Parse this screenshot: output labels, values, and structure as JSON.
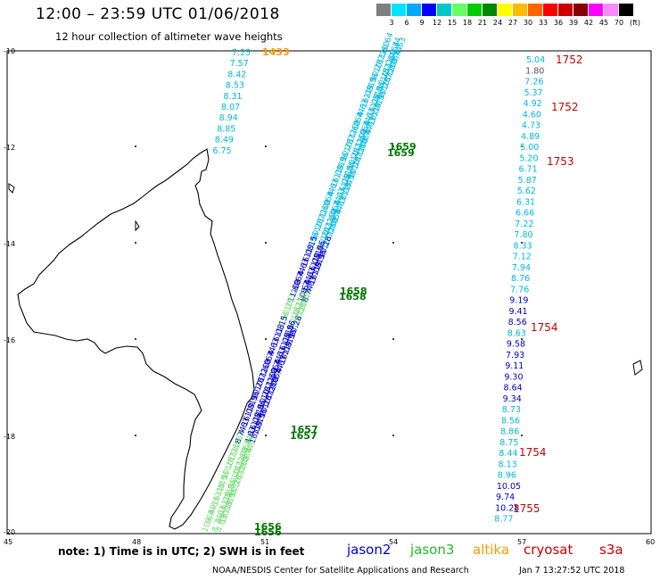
{
  "header": {
    "title": "12:00 – 23:59 UTC 01/06/2018",
    "subtitle": "12 hour collection of altimeter wave heights"
  },
  "legend": {
    "unit": "(ft)",
    "colors": [
      "#7f7f7f",
      "#00e5ff",
      "#00a8ff",
      "#0000ff",
      "#00c8c8",
      "#66ff66",
      "#00cc00",
      "#008800",
      "#ffff00",
      "#ffbb00",
      "#ff6600",
      "#ff0000",
      "#cc0000",
      "#880000",
      "#ff00ff",
      "#ff88ff",
      "#000000"
    ],
    "ticks": [
      "3",
      "6",
      "9",
      "12",
      "15",
      "18",
      "21",
      "24",
      "27",
      "30",
      "33",
      "36",
      "39",
      "42",
      "45",
      "70"
    ]
  },
  "axes": {
    "lat_labels": [
      "-10",
      "-12",
      "-14",
      "-16",
      "-18",
      "-20"
    ],
    "lon_labels": [
      "45",
      "48",
      "51",
      "54",
      "57",
      "60"
    ],
    "colors": {
      "grid": "#000000"
    }
  },
  "tracks": {
    "colors": {
      "jason2": "#0000cc",
      "jason3": "#22bb22",
      "altika": "#ff9900",
      "cryosat": "#cc0000",
      "light_blue": "#00b8e0",
      "light_green": "#77dd77",
      "gray": "#555555",
      "time_green": "#007700"
    },
    "west_track": {
      "values": [
        "7.25",
        "7.57",
        "8.42",
        "8.53",
        "8.31",
        "8.07",
        "8.94",
        "8.85",
        "8.49",
        "6.75"
      ],
      "time": "1433"
    },
    "diag_times": [
      "1659",
      "1659",
      "1658",
      "1658",
      "1657",
      "1657",
      "1656",
      "1656"
    ],
    "diag_values": [
      "4.63",
      "8.74",
      "10.64",
      "11.60",
      "10.72",
      "10.28",
      "9.96",
      "11.15",
      "16.08"
    ],
    "east_track": {
      "values": [
        "5.04",
        "1.80",
        "7.26",
        "5.37",
        "4.92",
        "4.60",
        "4.73",
        "4.89",
        "5.00",
        "5.20",
        "6.71",
        "5.87",
        "5.62",
        "6.31",
        "6.66",
        "7.22",
        "7.80",
        "8.33",
        "7.12",
        "7.94",
        "8.76",
        "7.76",
        "9.19",
        "9.41",
        "8.56",
        "8.63",
        "9.58",
        "7.93",
        "9.11",
        "9.30",
        "8.64",
        "9.34",
        "8.73",
        "8.56",
        "8.86",
        "8.75",
        "8.44",
        "8.13",
        "8.96",
        "10.05",
        "9.74",
        "10.28",
        "8.77"
      ],
      "times": [
        "1752",
        "1752",
        "1753",
        "1754",
        "1754",
        "1755"
      ]
    }
  },
  "footer": {
    "note": "note: 1) Time is in UTC; 2) SWH is in feet",
    "sats": [
      "jason2",
      "jason3",
      "altika",
      "cryosat",
      "s3a"
    ],
    "credit": "NOAA/NESDIS Center for Satellite Applications and Research",
    "timestamp": "Jan  7 13:27:52 UTC 2018"
  }
}
